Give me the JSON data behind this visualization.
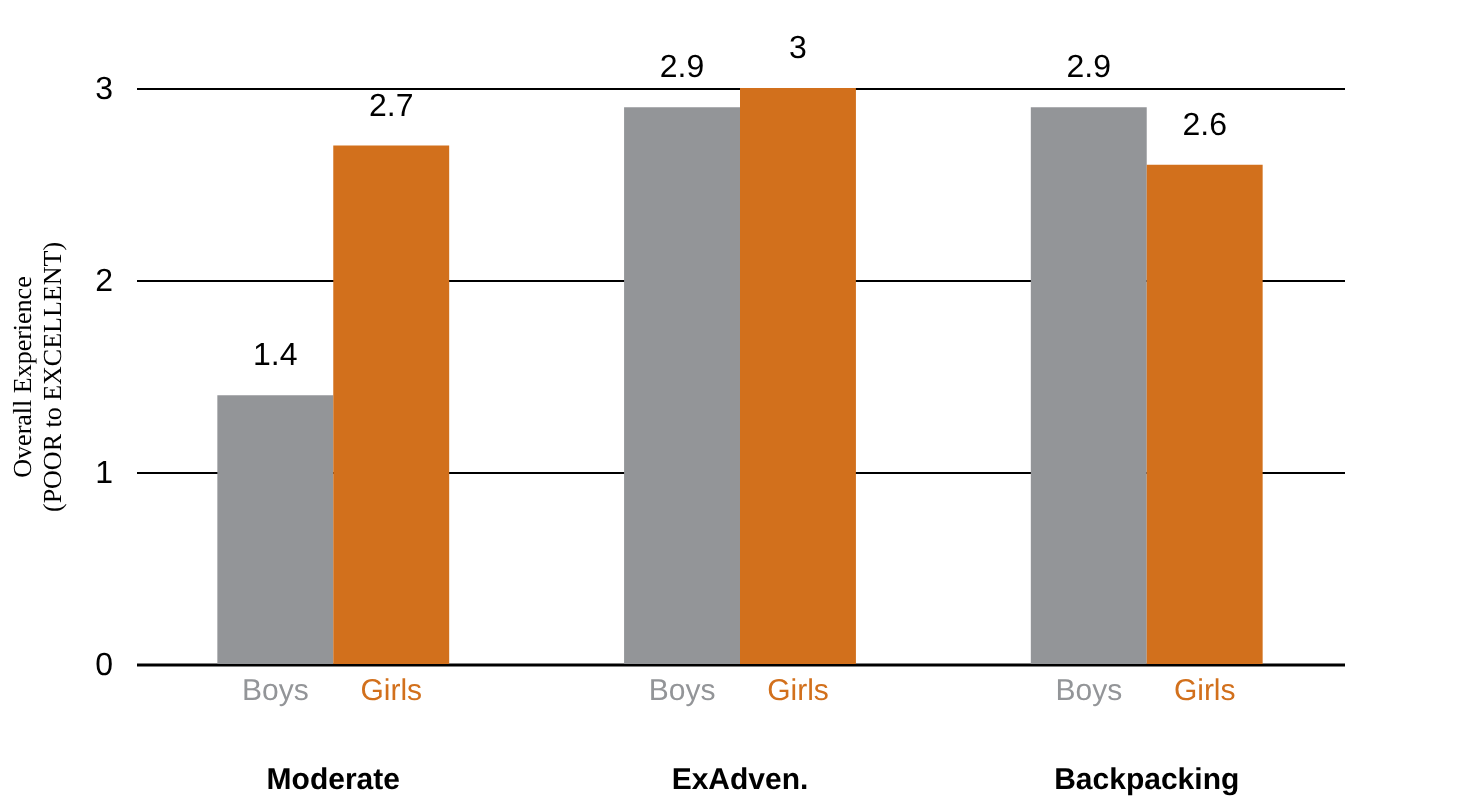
{
  "chart_data": {
    "type": "bar",
    "ylabel": "Overall Experience\n(POOR to EXCELLENT)",
    "categories": [
      "Moderate",
      "ExAdven.",
      "Backpacking"
    ],
    "series": [
      {
        "name": "Boys",
        "color": "#939598",
        "values": [
          1.4,
          2.9,
          2.9
        ]
      },
      {
        "name": "Girls",
        "color": "#d2701c",
        "values": [
          2.7,
          3,
          2.6
        ]
      }
    ],
    "ylim": [
      0,
      3
    ],
    "yticks": [
      0,
      1,
      2,
      3
    ],
    "grid": "y",
    "legend": false,
    "data_labels": true
  }
}
